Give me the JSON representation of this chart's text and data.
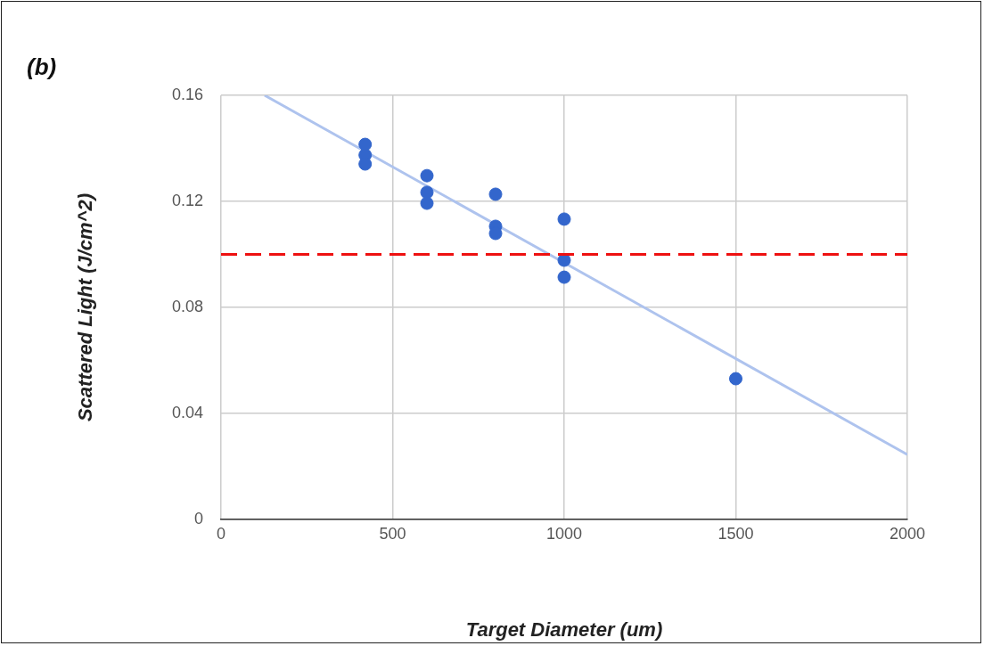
{
  "chart_data": {
    "type": "scatter",
    "title": "(b)",
    "xlabel": "Target Diameter (um)",
    "ylabel": "Scattered Light (J/cm^2)",
    "series": [
      {
        "color": "#3366cc",
        "x": [
          420,
          420,
          420,
          600,
          600,
          600,
          800,
          800,
          800,
          1000,
          1000,
          1000,
          1500
        ],
        "values": [
          0.1415,
          0.1375,
          0.1341,
          0.1297,
          0.1234,
          0.1193,
          0.1227,
          0.1106,
          0.1079,
          0.1133,
          0.0978,
          0.0914,
          0.0531
        ]
      },
      {
        "type": "line",
        "marker": "none",
        "color": "#aec3ee",
        "x": [
          127,
          2000
        ],
        "values": [
          0.16,
          0.0245
        ]
      }
    ],
    "xlim": [
      0,
      2000
    ],
    "xticks": [
      0,
      500,
      1000,
      1500,
      2000
    ],
    "ylim": [
      0,
      0.16
    ],
    "yticks": [
      0,
      0.04,
      0.08,
      0.12,
      0.16
    ],
    "ref_lines": [
      {
        "axis": "y",
        "value": 0.1,
        "color": "#ee1111",
        "line_style": "dashed"
      }
    ],
    "grid": true,
    "legend": false,
    "marker": "circle"
  }
}
